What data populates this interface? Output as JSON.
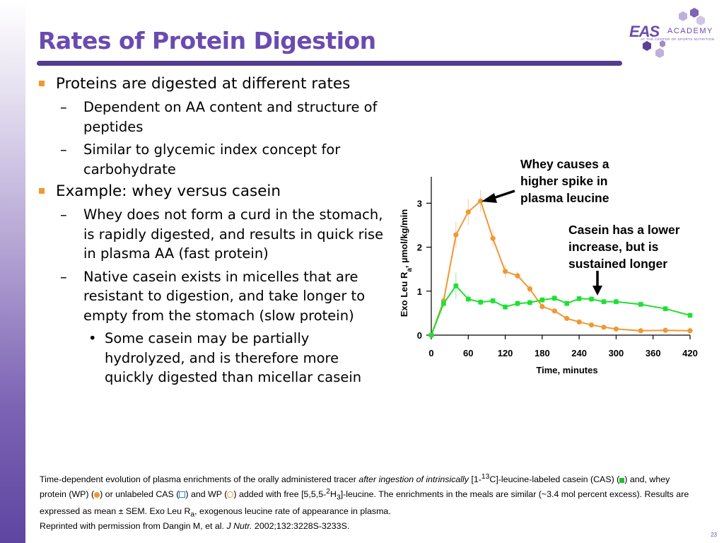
{
  "slide": {
    "title": "Rates of Protein Digestion",
    "page_number": "23",
    "colors": {
      "title": "#6a4bb0",
      "rule": "#533d8e",
      "bullet": "#f09832"
    }
  },
  "logo": {
    "brand": "EAS",
    "academy": "ACADEMY",
    "tagline": "AT THE CENTER OF SPORTS NUTRITION"
  },
  "bullets": {
    "b1": "Proteins are digested at different rates",
    "b1_sub1": "Dependent on AA content and structure of peptides",
    "b1_sub2": "Similar to glycemic index concept for carbohydrate",
    "b2": "Example: whey versus casein",
    "b2_sub1": "Whey does not form a curd in the stomach, is rapidly digested, and results in quick rise in plasma AA (fast protein)",
    "b2_sub2": "Native casein exists in micelles that are resistant to digestion, and take longer to empty from the stomach (slow protein)",
    "b2_sub2_sub1": "Some casein may be partially hydrolyzed, and is therefore more quickly digested than micellar casein",
    "dash": "–",
    "dot": "•"
  },
  "callouts": {
    "whey": "Whey causes a higher spike in plasma leucine",
    "casein": "Casein has a lower increase, but is sustained longer"
  },
  "caption": {
    "p1": "Time-dependent evolution of plasma enrichments of the orally administered tracer ",
    "p1_italic": "after ingestion of intrinsically",
    "p2": " [1-",
    "p2_sup": "13",
    "p3": "C]-leucine-labeled casein (CAS) (",
    "p4": ") and, whey protein (WP) (",
    "p5": ") or unlabeled CAS (",
    "p6": ") and WP (",
    "p7": ") added with free [5,5,5-",
    "p7_sup": "2",
    "p8": "H",
    "p8_sub": "3",
    "p9": "]-leucine. The enrichments in the meals are similar (~3.4 mol percent excess). Results are expressed as mean ± SEM. Exo Leu R",
    "p9_sub": "a",
    "p10": ", exogenous leucine rate of appearance in plasma."
  },
  "reprint": {
    "prefix": "Reprinted with permission from Dangin M, et al. ",
    "journal": "J Nutr.",
    "suffix": " 2002;132:3228S-3233S."
  },
  "chart_data": {
    "type": "line",
    "xlabel": "Time, minutes",
    "ylabel": "Exo Leu Ra, µmol/kg/min",
    "xticks": [
      0,
      60,
      120,
      180,
      240,
      300,
      360,
      420
    ],
    "yticks": [
      0,
      1,
      2,
      3
    ],
    "xlim": [
      0,
      420
    ],
    "ylim": [
      0,
      3.4
    ],
    "series": [
      {
        "color": "#f09832",
        "marker": "circle",
        "x": [
          0,
          20,
          40,
          60,
          80,
          100,
          120,
          140,
          160,
          180,
          200,
          220,
          240,
          260,
          280,
          300,
          340,
          380,
          420
        ],
        "y": [
          0,
          0.78,
          2.28,
          2.8,
          3.05,
          2.2,
          1.45,
          1.35,
          1.05,
          0.65,
          0.55,
          0.38,
          0.3,
          0.23,
          0.18,
          0.14,
          0.1,
          0.11,
          0.1
        ],
        "err": [
          0,
          0.1,
          0.3,
          0.3,
          0.25,
          0.2,
          0.15,
          0.1,
          0.1,
          0.08,
          0.06,
          0.05,
          0.04,
          0.04,
          0.03,
          0.03,
          0.02,
          0.02,
          0.02
        ]
      },
      {
        "color": "#1fe032",
        "marker": "square",
        "x": [
          0,
          20,
          40,
          60,
          80,
          100,
          120,
          140,
          160,
          180,
          200,
          220,
          240,
          260,
          280,
          300,
          340,
          380,
          420
        ],
        "y": [
          0,
          0.72,
          1.12,
          0.82,
          0.75,
          0.78,
          0.64,
          0.72,
          0.74,
          0.8,
          0.84,
          0.72,
          0.83,
          0.82,
          0.76,
          0.76,
          0.7,
          0.6,
          0.45
        ],
        "err": [
          0,
          0.08,
          0.3,
          0.1,
          0.08,
          0.08,
          0.07,
          0.07,
          0.07,
          0.07,
          0.08,
          0.07,
          0.07,
          0.07,
          0.07,
          0.07,
          0.06,
          0.06,
          0.05
        ]
      }
    ]
  }
}
